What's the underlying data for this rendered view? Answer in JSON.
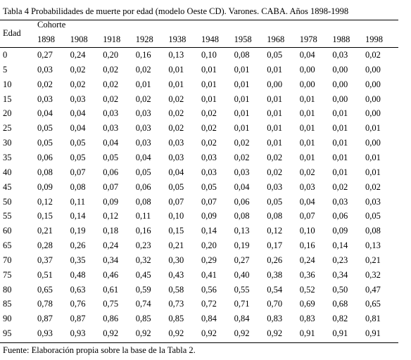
{
  "title": "Tabla 4 Probabilidades de muerte por edad (modelo Oeste CD). Varones. CABA. Años 1898-1998",
  "table": {
    "age_header": "Edad",
    "group_header": "Cohorte",
    "columns": [
      "1898",
      "1908",
      "1918",
      "1928",
      "1938",
      "1948",
      "1958",
      "1968",
      "1978",
      "1988",
      "1998"
    ],
    "rows": [
      [
        "0",
        "0,27",
        "0,24",
        "0,20",
        "0,16",
        "0,13",
        "0,10",
        "0,08",
        "0,05",
        "0,04",
        "0,03",
        "0,02"
      ],
      [
        "5",
        "0,03",
        "0,02",
        "0,02",
        "0,02",
        "0,01",
        "0,01",
        "0,01",
        "0,01",
        "0,00",
        "0,00",
        "0,00"
      ],
      [
        "10",
        "0,02",
        "0,02",
        "0,02",
        "0,01",
        "0,01",
        "0,01",
        "0,01",
        "0,00",
        "0,00",
        "0,00",
        "0,00"
      ],
      [
        "15",
        "0,03",
        "0,03",
        "0,02",
        "0,02",
        "0,02",
        "0,01",
        "0,01",
        "0,01",
        "0,01",
        "0,00",
        "0,00"
      ],
      [
        "20",
        "0,04",
        "0,04",
        "0,03",
        "0,03",
        "0,02",
        "0,02",
        "0,01",
        "0,01",
        "0,01",
        "0,01",
        "0,00"
      ],
      [
        "25",
        "0,05",
        "0,04",
        "0,03",
        "0,03",
        "0,02",
        "0,02",
        "0,01",
        "0,01",
        "0,01",
        "0,01",
        "0,01"
      ],
      [
        "30",
        "0,05",
        "0,05",
        "0,04",
        "0,03",
        "0,03",
        "0,02",
        "0,02",
        "0,01",
        "0,01",
        "0,01",
        "0,00"
      ],
      [
        "35",
        "0,06",
        "0,05",
        "0,05",
        "0,04",
        "0,03",
        "0,03",
        "0,02",
        "0,02",
        "0,01",
        "0,01",
        "0,01"
      ],
      [
        "40",
        "0,08",
        "0,07",
        "0,06",
        "0,05",
        "0,04",
        "0,03",
        "0,03",
        "0,02",
        "0,02",
        "0,01",
        "0,01"
      ],
      [
        "45",
        "0,09",
        "0,08",
        "0,07",
        "0,06",
        "0,05",
        "0,05",
        "0,04",
        "0,03",
        "0,03",
        "0,02",
        "0,02"
      ],
      [
        "50",
        "0,12",
        "0,11",
        "0,09",
        "0,08",
        "0,07",
        "0,07",
        "0,06",
        "0,05",
        "0,04",
        "0,03",
        "0,03"
      ],
      [
        "55",
        "0,15",
        "0,14",
        "0,12",
        "0,11",
        "0,10",
        "0,09",
        "0,08",
        "0,08",
        "0,07",
        "0,06",
        "0,05"
      ],
      [
        "60",
        "0,21",
        "0,19",
        "0,18",
        "0,16",
        "0,15",
        "0,14",
        "0,13",
        "0,12",
        "0,10",
        "0,09",
        "0,08"
      ],
      [
        "65",
        "0,28",
        "0,26",
        "0,24",
        "0,23",
        "0,21",
        "0,20",
        "0,19",
        "0,17",
        "0,16",
        "0,14",
        "0,13"
      ],
      [
        "70",
        "0,37",
        "0,35",
        "0,34",
        "0,32",
        "0,30",
        "0,29",
        "0,27",
        "0,26",
        "0,24",
        "0,23",
        "0,21"
      ],
      [
        "75",
        "0,51",
        "0,48",
        "0,46",
        "0,45",
        "0,43",
        "0,41",
        "0,40",
        "0,38",
        "0,36",
        "0,34",
        "0,32"
      ],
      [
        "80",
        "0,65",
        "0,63",
        "0,61",
        "0,59",
        "0,58",
        "0,56",
        "0,55",
        "0,54",
        "0,52",
        "0,50",
        "0,47"
      ],
      [
        "85",
        "0,78",
        "0,76",
        "0,75",
        "0,74",
        "0,73",
        "0,72",
        "0,71",
        "0,70",
        "0,69",
        "0,68",
        "0,65"
      ],
      [
        "90",
        "0,87",
        "0,87",
        "0,86",
        "0,85",
        "0,85",
        "0,84",
        "0,84",
        "0,83",
        "0,83",
        "0,82",
        "0,81"
      ],
      [
        "95",
        "0,93",
        "0,93",
        "0,92",
        "0,92",
        "0,92",
        "0,92",
        "0,92",
        "0,92",
        "0,91",
        "0,91",
        "0,91"
      ]
    ]
  },
  "footer": "Fuente: Elaboración propia sobre la base de la Tabla 2."
}
